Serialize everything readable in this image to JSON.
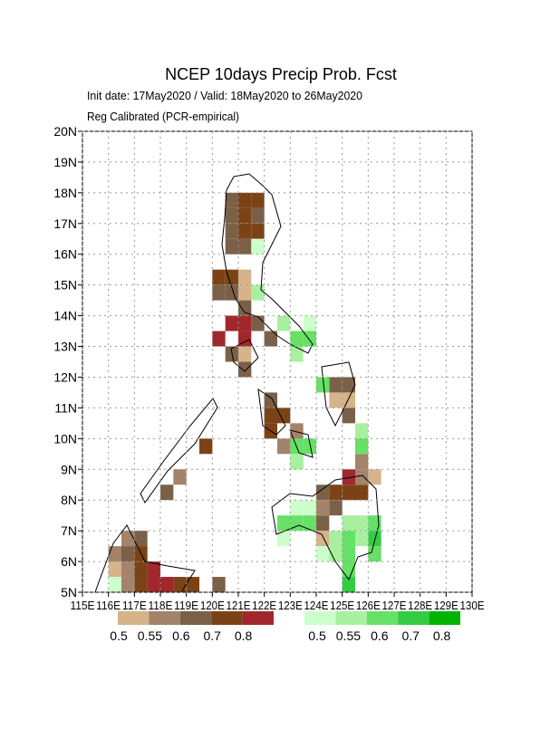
{
  "chart_data": {
    "type": "grid-map",
    "title": "NCEP 10days Precip Prob. Fcst",
    "subtitle": "Init date: 17May2020 / Valid: 18May2020 to 26May2020",
    "subtitle2": "Reg Calibrated (PCR-empirical)",
    "xlim": [
      115,
      130
    ],
    "ylim": [
      5,
      20
    ],
    "grid": true,
    "xticks": [
      {
        "value": 115,
        "label": "115E"
      },
      {
        "value": 116,
        "label": "116E"
      },
      {
        "value": 117,
        "label": "117E"
      },
      {
        "value": 118,
        "label": "118E"
      },
      {
        "value": 119,
        "label": "119E"
      },
      {
        "value": 120,
        "label": "120E"
      },
      {
        "value": 121,
        "label": "121E"
      },
      {
        "value": 122,
        "label": "122E"
      },
      {
        "value": 123,
        "label": "123E"
      },
      {
        "value": 124,
        "label": "124E"
      },
      {
        "value": 125,
        "label": "125E"
      },
      {
        "value": 126,
        "label": "126E"
      },
      {
        "value": 127,
        "label": "127E"
      },
      {
        "value": 128,
        "label": "128E"
      },
      {
        "value": 129,
        "label": "129E"
      },
      {
        "value": 130,
        "label": "130E"
      }
    ],
    "yticks": [
      {
        "value": 5,
        "label": "5N"
      },
      {
        "value": 6,
        "label": "6N"
      },
      {
        "value": 7,
        "label": "7N"
      },
      {
        "value": 8,
        "label": "8N"
      },
      {
        "value": 9,
        "label": "9N"
      },
      {
        "value": 10,
        "label": "10N"
      },
      {
        "value": 11,
        "label": "11N"
      },
      {
        "value": 12,
        "label": "12N"
      },
      {
        "value": 13,
        "label": "13N"
      },
      {
        "value": 14,
        "label": "14N"
      },
      {
        "value": 15,
        "label": "15N"
      },
      {
        "value": 16,
        "label": "16N"
      },
      {
        "value": 17,
        "label": "17N"
      },
      {
        "value": 18,
        "label": "18N"
      },
      {
        "value": 19,
        "label": "19N"
      },
      {
        "value": 20,
        "label": "20N"
      }
    ],
    "dry_scale": {
      "levels": [
        0.5,
        0.55,
        0.6,
        0.7,
        0.8
      ],
      "colors": [
        "#d6b389",
        "#a3836a",
        "#7b6048",
        "#7b4315",
        "#a0282d"
      ]
    },
    "wet_scale": {
      "levels": [
        0.5,
        0.55,
        0.6,
        0.7,
        0.8
      ],
      "colors": [
        "#ccffcc",
        "#a8f0a0",
        "#66e066",
        "#33cc44",
        "#00b400"
      ]
    },
    "dry_cells": {
      "lon": [
        120.5,
        121,
        121.5,
        120.5,
        121,
        121.5,
        120.5,
        121,
        121.5,
        120.5,
        121,
        120,
        120.5,
        121,
        120,
        120.5,
        121,
        121,
        120.5,
        121,
        121.5,
        120,
        121,
        120.5,
        121,
        121,
        122,
        122,
        122,
        122.5,
        122,
        122.5,
        123,
        119.5,
        118.5,
        118,
        116.5,
        117,
        116.5,
        117,
        116,
        116.5,
        117,
        117,
        116.5,
        117.5,
        118,
        117.5,
        118.5,
        119,
        120,
        116,
        124.5,
        125,
        125,
        124.5,
        125,
        125.5,
        125,
        124.5,
        124,
        125,
        125.5,
        125.5,
        126,
        124,
        124.5,
        124,
        124,
        123
      ],
      "lat": [
        17.5,
        17.5,
        17.5,
        17,
        17,
        17,
        16.5,
        16.5,
        16.5,
        16,
        16,
        15,
        15,
        15,
        14.5,
        14.5,
        14.5,
        14,
        13.5,
        13.5,
        13.5,
        13,
        13,
        12.5,
        12.5,
        12,
        13,
        11,
        10.5,
        10.5,
        10,
        9.5,
        9,
        9.5,
        8.5,
        8,
        6.5,
        6.5,
        6,
        6,
        5.5,
        5.5,
        5.5,
        5,
        5,
        5,
        5,
        5.5,
        5,
        5,
        5,
        6,
        11.5,
        11.5,
        11,
        11,
        10.5,
        8,
        8,
        8,
        8,
        8.5,
        8.5,
        9,
        8.5,
        7,
        7.5,
        7.5,
        6.5,
        10
      ],
      "values": [
        0.6,
        0.7,
        0.7,
        0.6,
        0.7,
        0.6,
        0.6,
        0.7,
        0.7,
        0.6,
        0.6,
        0.7,
        0.7,
        0.5,
        0.6,
        0.6,
        0.5,
        0.6,
        0.8,
        0.8,
        0.6,
        0.8,
        0.8,
        0.6,
        0.5,
        0.6,
        0.6,
        0.6,
        0.7,
        0.7,
        0.7,
        0.55,
        0.5,
        0.7,
        0.55,
        0.6,
        0.55,
        0.6,
        0.6,
        0.7,
        0.5,
        0.55,
        0.7,
        0.7,
        0.55,
        0.8,
        0.8,
        0.8,
        0.7,
        0.7,
        0.6,
        0.55,
        0.6,
        0.6,
        0.5,
        0.5,
        0.6,
        0.7,
        0.7,
        0.7,
        0.6,
        0.8,
        0.55,
        0.55,
        0.5,
        0.6,
        0.6,
        0.55,
        0.5,
        0.55
      ]
    },
    "wet_cells": {
      "lon": [
        121.5,
        121.5,
        122.5,
        123,
        123.5,
        123,
        123.5,
        124,
        125.5,
        125.5,
        123,
        123.5,
        123,
        122.5,
        122.5,
        123,
        123.5,
        123.5,
        123,
        124,
        124.5,
        124.5,
        125,
        125,
        125,
        125,
        125.5,
        126,
        126,
        126,
        125.5,
        125,
        116
      ],
      "lat": [
        16,
        14.5,
        13.5,
        13,
        13,
        12.5,
        13.5,
        11.5,
        10,
        9.5,
        9.5,
        9.5,
        9,
        7,
        6.5,
        7.5,
        7.5,
        7,
        7,
        6,
        6.5,
        6,
        6.5,
        6,
        5.5,
        5,
        7,
        7,
        6.5,
        6,
        6.5,
        7,
        5
      ],
      "values": [
        0.5,
        0.55,
        0.55,
        0.6,
        0.6,
        0.55,
        0.5,
        0.6,
        0.55,
        0.6,
        0.6,
        0.6,
        0.55,
        0.6,
        0.5,
        0.5,
        0.5,
        0.6,
        0.6,
        0.5,
        0.55,
        0.55,
        0.6,
        0.6,
        0.6,
        0.7,
        0.55,
        0.6,
        0.7,
        0.6,
        0.55,
        0.55,
        0.5
      ]
    }
  }
}
